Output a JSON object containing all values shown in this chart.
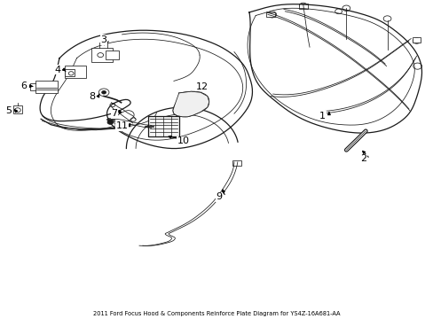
{
  "title": "2011 Ford Focus Hood & Components Reinforce Plate Diagram for YS4Z-16A681-AA",
  "background_color": "#ffffff",
  "line_color": "#1a1a1a",
  "text_color": "#000000",
  "fig_width": 4.89,
  "fig_height": 3.6,
  "dpi": 100
}
